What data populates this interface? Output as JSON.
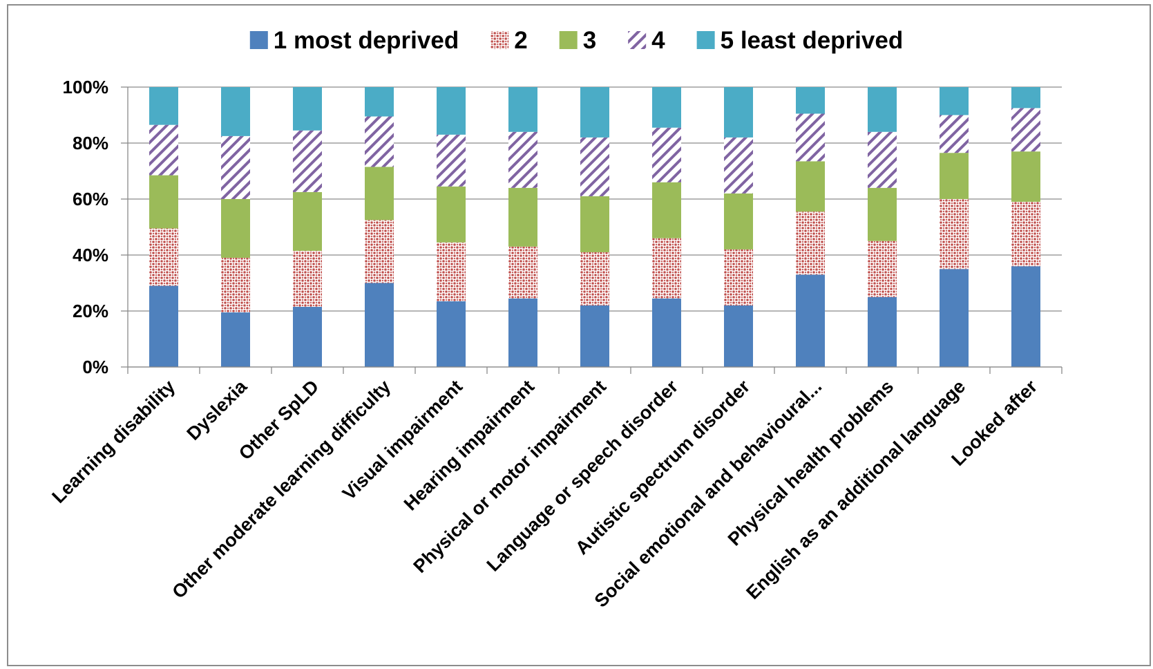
{
  "chart_data": {
    "type": "bar",
    "stacked": true,
    "percent_stacked": true,
    "title": "",
    "xlabel": "",
    "ylabel": "",
    "ylim": [
      0,
      100
    ],
    "y_ticks": [
      "0%",
      "20%",
      "40%",
      "60%",
      "80%",
      "100%"
    ],
    "grid": "horizontal major gridlines",
    "legend_position": "top",
    "categories": [
      "Learning disability",
      "Dyslexia",
      "Other SpLD",
      "Other moderate learning difficulty",
      "Visual impairment",
      "Hearing impairment",
      "Physical or motor impairment",
      "Language or speech disorder",
      "Autistic spectrum disorder",
      "Social emotional and behavioural...",
      "Physical health problems",
      "English as an additional language",
      "Looked after"
    ],
    "series": [
      {
        "name": "1 most deprived",
        "color": "#4f81bd",
        "pattern": "solid",
        "values": [
          29,
          19.5,
          21.5,
          30,
          23.5,
          24.5,
          22,
          24.5,
          22,
          33,
          25,
          35,
          36
        ]
      },
      {
        "name": "2",
        "color": "#c0504d",
        "pattern": "red dotted on white",
        "values": [
          20.5,
          19.5,
          20,
          22.5,
          21,
          18.5,
          19,
          21.5,
          20,
          22.5,
          20,
          25,
          23
        ]
      },
      {
        "name": "3",
        "color": "#9bbb59",
        "pattern": "solid",
        "values": [
          19,
          21,
          21,
          19,
          20,
          21,
          20,
          20,
          20,
          18,
          19,
          16.5,
          18
        ]
      },
      {
        "name": "4",
        "color": "#8064a2",
        "pattern": "purple diagonal stripes on white",
        "values": [
          18,
          22.5,
          22,
          18,
          18.5,
          20,
          21,
          19.5,
          20,
          17,
          20,
          13.5,
          15.5
        ]
      },
      {
        "name": "5 least deprived",
        "color": "#4bacc6",
        "pattern": "solid",
        "values": [
          13.5,
          17.5,
          15.5,
          10.5,
          17,
          16,
          18,
          14.5,
          18,
          9.5,
          16,
          10,
          7.5
        ]
      }
    ]
  }
}
